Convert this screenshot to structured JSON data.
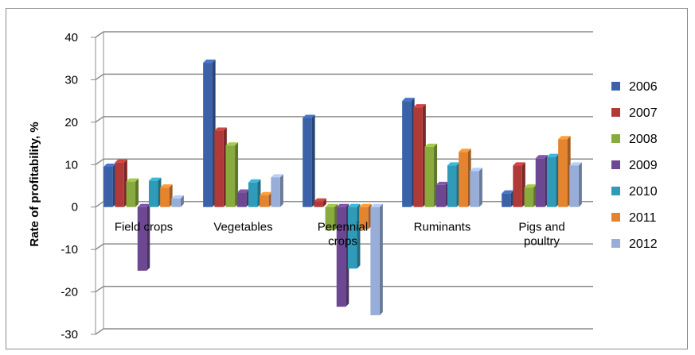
{
  "chart_data": {
    "type": "bar",
    "title": "",
    "xlabel": "",
    "ylabel": "Rate of profitability, %",
    "ylim": [
      -30,
      40
    ],
    "yticks": [
      40,
      30,
      20,
      10,
      0,
      -10,
      -20,
      -30
    ],
    "grid": true,
    "legend_position": "right",
    "categories": [
      [
        "Field crops"
      ],
      [
        "Vegetables"
      ],
      [
        "Perennial",
        "crops"
      ],
      [
        "Ruminants"
      ],
      [
        "Pigs and",
        "poultry"
      ]
    ],
    "series": [
      {
        "name": "2006",
        "color": "#3b62a8",
        "values": [
          9.5,
          34,
          21,
          25,
          3.2
        ]
      },
      {
        "name": "2007",
        "color": "#b03a37",
        "values": [
          10.5,
          18,
          1.3,
          23.5,
          9.8
        ]
      },
      {
        "name": "2008",
        "color": "#88aa3e",
        "values": [
          6,
          14.5,
          -5.5,
          14.2,
          4.6
        ]
      },
      {
        "name": "2009",
        "color": "#6b4891",
        "values": [
          -15,
          3.4,
          -23.5,
          5.2,
          11.5
        ]
      },
      {
        "name": "2010",
        "color": "#2f9bb8",
        "values": [
          6.2,
          5.8,
          -14.5,
          9.8,
          11.8
        ]
      },
      {
        "name": "2011",
        "color": "#e5842f",
        "values": [
          4.6,
          2.8,
          -5.2,
          13,
          16
        ]
      },
      {
        "name": "2012",
        "color": "#98aed9",
        "values": [
          2,
          7,
          -25.5,
          8.5,
          9.8
        ]
      }
    ]
  }
}
